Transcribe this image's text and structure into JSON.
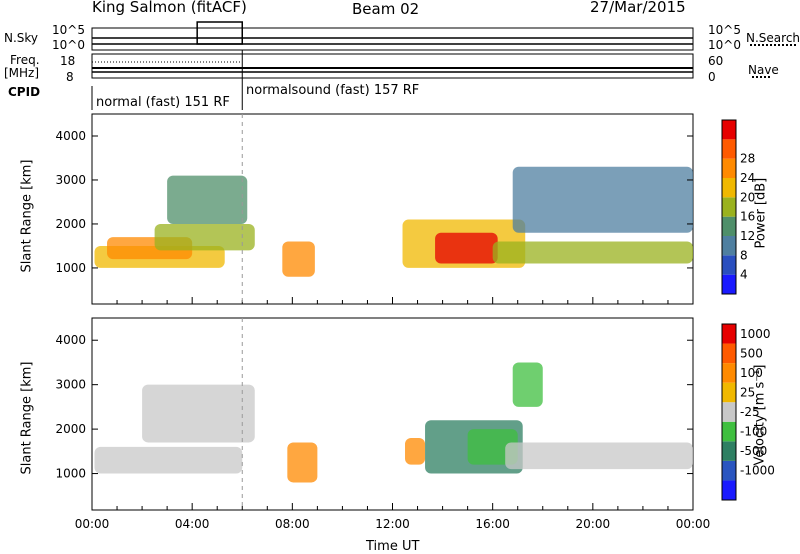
{
  "header": {
    "site": "King Salmon (fitACF)",
    "beam": "Beam 02",
    "date": "27/Mar/2015"
  },
  "top_panels": {
    "nsky_label": "N.Sky",
    "nsearch_label": "N.Search",
    "log_top": "10^5",
    "log_bottom": "10^0",
    "freq_label": "Freq.",
    "freq_unit": "[MHz]",
    "freq_ticks": [
      "18",
      "8"
    ],
    "nave_label": "Nave",
    "nave_ticks": [
      "60",
      "0"
    ],
    "cpid_label": "CPID",
    "modes": [
      {
        "label": "normal (fast) 151 RF",
        "start_hour": 0,
        "end_hour": 6
      },
      {
        "label": "normalsound (fast) 157 RF",
        "start_hour": 6,
        "end_hour": 24
      }
    ]
  },
  "chart_data": [
    {
      "type": "heatmap",
      "quantity": "power",
      "xlabel": "",
      "ylabel": "Slant Range [km]",
      "xlim": [
        0,
        24
      ],
      "ylim": [
        180,
        4500
      ],
      "yticks": [
        "1000",
        "2000",
        "3000",
        "4000"
      ],
      "colorbar": {
        "label": "Power [dB]",
        "ticks": [
          "4",
          "8",
          "12",
          "16",
          "20",
          "24",
          "28"
        ],
        "colors": [
          "#1a1aff",
          "#2a4fbf",
          "#4f7fa0",
          "#4f8f6a",
          "#9ab21e",
          "#f0b800",
          "#ff8a00",
          "#ff5a00",
          "#e60000"
        ]
      },
      "regions": [
        {
          "x": [
            0.1,
            5.3
          ],
          "y": [
            1000,
            1500
          ],
          "level": 5
        },
        {
          "x": [
            0.6,
            4.0
          ],
          "y": [
            1200,
            1700
          ],
          "level": 6
        },
        {
          "x": [
            2.5,
            6.5
          ],
          "y": [
            1400,
            2000
          ],
          "level": 4
        },
        {
          "x": [
            3.0,
            6.2
          ],
          "y": [
            2000,
            3100
          ],
          "level": 3
        },
        {
          "x": [
            7.6,
            8.9
          ],
          "y": [
            800,
            1600
          ],
          "level": 6
        },
        {
          "x": [
            12.4,
            17.3
          ],
          "y": [
            1000,
            2100
          ],
          "level": 5
        },
        {
          "x": [
            13.7,
            16.2
          ],
          "y": [
            1100,
            1800
          ],
          "level": 8
        },
        {
          "x": [
            16.0,
            24.0
          ],
          "y": [
            1100,
            1600
          ],
          "level": 4
        },
        {
          "x": [
            16.8,
            24.0
          ],
          "y": [
            1800,
            3300
          ],
          "level": 2
        }
      ]
    },
    {
      "type": "heatmap",
      "quantity": "velocity",
      "xlabel": "Time UT",
      "ylabel": "Slant Range [km]",
      "xlim": [
        0,
        24
      ],
      "ylim": [
        180,
        4500
      ],
      "yticks": [
        "1000",
        "2000",
        "3000",
        "4000"
      ],
      "xticks": [
        "00:00",
        "04:00",
        "08:00",
        "12:00",
        "16:00",
        "20:00",
        "00:00"
      ],
      "colorbar": {
        "label": "Velocity [m s⁻¹]",
        "ticks": [
          "1000",
          "500",
          "100",
          "25",
          "-25",
          "-100",
          "-500",
          "-1000"
        ],
        "colors": [
          "#1a1aff",
          "#2a55c0",
          "#2e7f62",
          "#3fbf3f",
          "#c8c8c8",
          "#f0b800",
          "#ff8a00",
          "#ff5a00",
          "#e60000"
        ]
      },
      "regions": [
        {
          "x": [
            0.1,
            6.0
          ],
          "y": [
            1000,
            1600
          ],
          "level": 4
        },
        {
          "x": [
            2.0,
            6.5
          ],
          "y": [
            1700,
            3000
          ],
          "level": 4
        },
        {
          "x": [
            7.8,
            9.0
          ],
          "y": [
            800,
            1700
          ],
          "level": 6
        },
        {
          "x": [
            12.5,
            13.3
          ],
          "y": [
            1200,
            1800
          ],
          "level": 6
        },
        {
          "x": [
            13.3,
            17.2
          ],
          "y": [
            1000,
            2200
          ],
          "level": 2
        },
        {
          "x": [
            15.0,
            17.0
          ],
          "y": [
            1200,
            2000
          ],
          "level": 3
        },
        {
          "x": [
            16.5,
            24.0
          ],
          "y": [
            1100,
            1700
          ],
          "level": 4
        },
        {
          "x": [
            16.8,
            18.0
          ],
          "y": [
            2500,
            3500
          ],
          "level": 3
        }
      ]
    }
  ]
}
